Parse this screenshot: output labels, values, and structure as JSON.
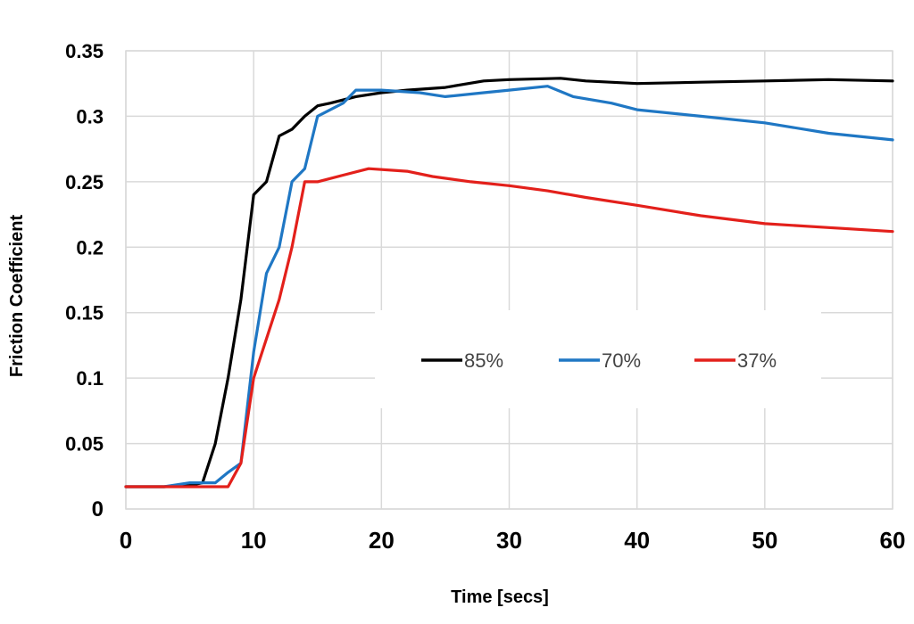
{
  "chart_data": {
    "type": "line",
    "xlabel": "Time [secs]",
    "ylabel": "Friction Coefficient",
    "xlim": [
      0,
      60
    ],
    "ylim": [
      0,
      0.35
    ],
    "xticks": [
      "0",
      "10",
      "20",
      "30",
      "40",
      "50",
      "60"
    ],
    "yticks": [
      "0",
      "0.05",
      "0.1",
      "0.15",
      "0.2",
      "0.25",
      "0.3",
      "0.35"
    ],
    "grid": true,
    "legend_position": "center-right",
    "series": [
      {
        "name": "85%",
        "color": "#000000",
        "x": [
          0,
          3,
          5,
          6,
          7,
          8,
          9,
          10,
          11,
          12,
          13,
          14,
          15,
          16,
          18,
          20,
          22,
          25,
          28,
          30,
          34,
          36,
          40,
          45,
          50,
          55,
          60
        ],
        "y": [
          0.017,
          0.017,
          0.018,
          0.02,
          0.05,
          0.1,
          0.16,
          0.24,
          0.25,
          0.285,
          0.29,
          0.3,
          0.308,
          0.31,
          0.315,
          0.318,
          0.32,
          0.322,
          0.327,
          0.328,
          0.329,
          0.327,
          0.325,
          0.326,
          0.327,
          0.328,
          0.327
        ]
      },
      {
        "name": "70%",
        "color": "#1f77c4",
        "x": [
          0,
          3,
          5,
          6,
          7,
          8,
          9,
          10,
          11,
          12,
          13,
          14,
          15,
          16,
          17,
          18,
          20,
          23,
          25,
          28,
          30,
          33,
          35,
          38,
          40,
          45,
          50,
          55,
          60
        ],
        "y": [
          0.017,
          0.017,
          0.02,
          0.02,
          0.02,
          0.028,
          0.035,
          0.12,
          0.18,
          0.2,
          0.25,
          0.26,
          0.3,
          0.305,
          0.31,
          0.32,
          0.32,
          0.318,
          0.315,
          0.318,
          0.32,
          0.323,
          0.315,
          0.31,
          0.305,
          0.3,
          0.295,
          0.287,
          0.282
        ]
      },
      {
        "name": "37%",
        "color": "#e3201b",
        "x": [
          0,
          3,
          5,
          7,
          8,
          9,
          10,
          11,
          12,
          13,
          14,
          15,
          17,
          19,
          22,
          24,
          27,
          30,
          33,
          36,
          40,
          45,
          50,
          55,
          60
        ],
        "y": [
          0.017,
          0.017,
          0.017,
          0.017,
          0.017,
          0.035,
          0.1,
          0.13,
          0.16,
          0.2,
          0.25,
          0.25,
          0.255,
          0.26,
          0.258,
          0.254,
          0.25,
          0.247,
          0.243,
          0.238,
          0.232,
          0.224,
          0.218,
          0.215,
          0.212
        ]
      }
    ]
  }
}
